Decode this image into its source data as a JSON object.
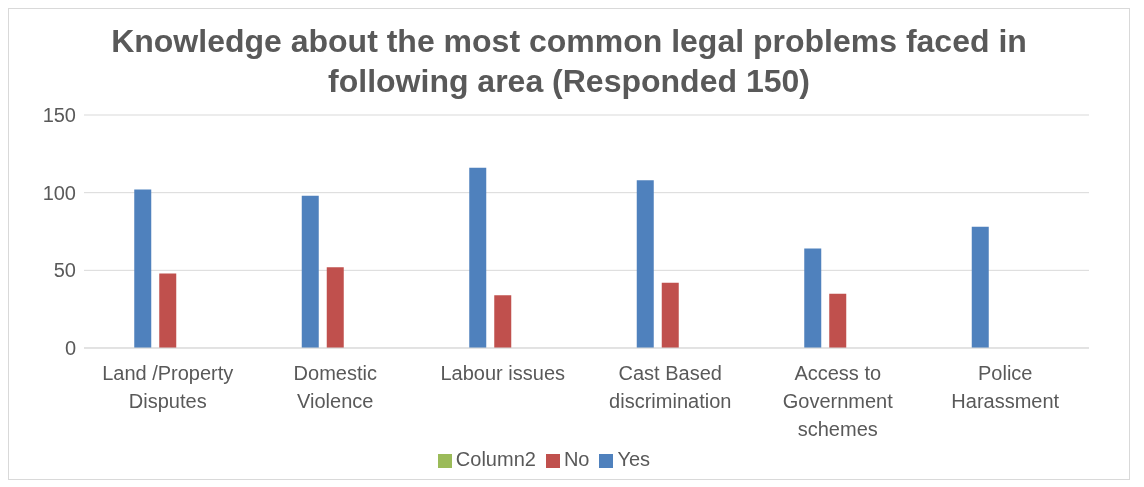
{
  "chart_data": {
    "type": "bar",
    "title": "Knowledge about the most common legal problems faced in following  area (Responded 150)",
    "categories": [
      "Land /Property Disputes",
      "Domestic Violence",
      "Labour issues",
      "Cast Based discrimination",
      "Access to Government schemes",
      "Police Harassment"
    ],
    "series": [
      {
        "name": "Yes",
        "color": "#4f81bd",
        "values": [
          102,
          98,
          116,
          108,
          64,
          78
        ]
      },
      {
        "name": "No",
        "color": "#c0504d",
        "values": [
          48,
          52,
          34,
          42,
          35,
          null
        ]
      },
      {
        "name": "Column2",
        "color": "#9bbb59",
        "values": [
          null,
          null,
          null,
          null,
          null,
          null
        ]
      }
    ],
    "ylim": [
      0,
      150
    ],
    "yticks": [
      0,
      50,
      100,
      150
    ],
    "grid": "y",
    "legend": "bottom"
  }
}
